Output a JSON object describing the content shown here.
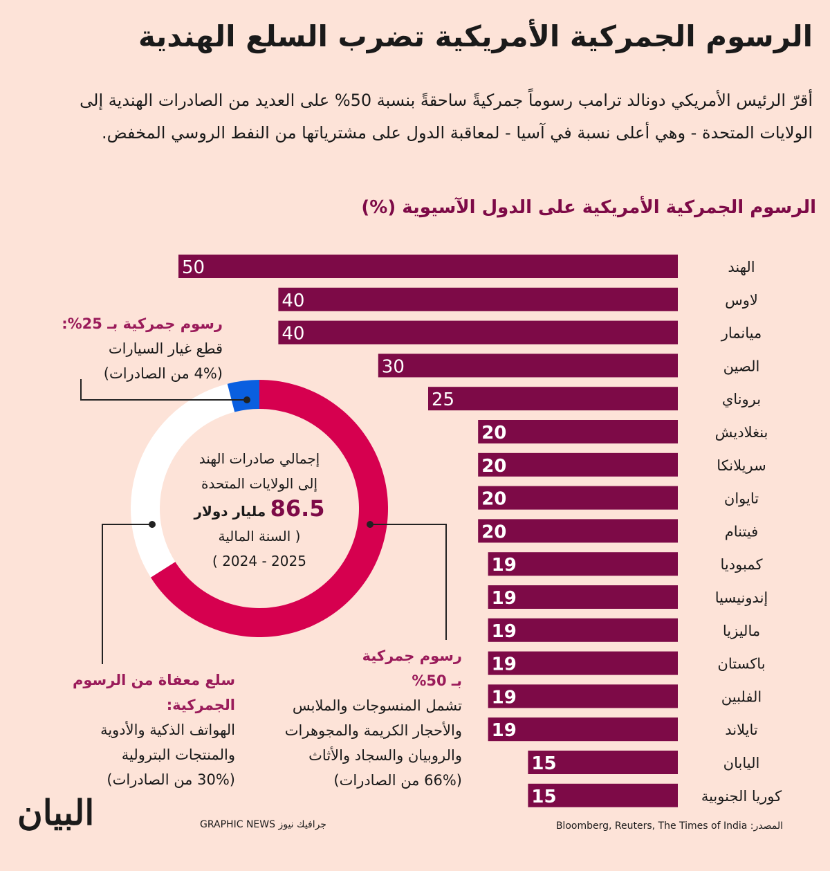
{
  "title": "الرسوم الجمركية الأمريكية تضرب السلع الهندية",
  "intro": "أقرّ الرئيس الأمريكي  دونالد ترامب رسوماً جمركيةً ساحقةً بنسبة 50% على العديد من الصادرات الهندية إلى الولايات المتحدة - وهي أعلى نسبة في آسيا - لمعاقبة الدول على مشترياتها من النفط الروسي المخفض.",
  "chart_data": [
    {
      "type": "bar",
      "orientation": "horizontal",
      "title": "الرسوم الجمركية الأمريكية  على الدول الآسيوية (%)",
      "categories": [
        "الهند",
        "لاوس",
        "ميانمار",
        "الصين",
        "بروناي",
        "بنغلاديش",
        "سريلانكا",
        "تايوان",
        "فيتنام",
        "كمبوديا",
        "إندونيسيا",
        "ماليزيا",
        "باكستان",
        "الفلبين",
        "تايلاند",
        "اليابان",
        "كوريا الجنوبية"
      ],
      "values": [
        50,
        40,
        40,
        30,
        25,
        20,
        20,
        20,
        20,
        19,
        19,
        19,
        19,
        19,
        19,
        15,
        15
      ],
      "xlim": [
        0,
        50
      ],
      "color": "#7d0a47"
    },
    {
      "type": "pie",
      "title": "إجمالي صادرات الهند إلى الولايات المتحدة",
      "total_value": "86.5",
      "total_unit": "مليار دولار",
      "period_line1": "( السنة المالية",
      "period_line2": "2025 - 2024  )",
      "slices": [
        {
          "label": "رسوم جمركية بـ 50%",
          "value": 66,
          "color": "#d6004f"
        },
        {
          "label": "سلع معفاة من الرسوم الجمركية",
          "value": 30,
          "color": "#ffffff"
        },
        {
          "label": "رسوم جمركية بـ 25%",
          "value": 4,
          "color": "#0a5fe0"
        }
      ]
    }
  ],
  "notes": {
    "n25": {
      "head": "رسوم جمركية بـ 25%:",
      "body": "قطع غيار السيارات",
      "share": "(4% من الصادرات)"
    },
    "n50": {
      "head1": "رسوم جمركية",
      "head2": "بـ 50%",
      "l1": "تشمل المنسوجات والملابس",
      "l2": "والأحجار الكريمة والمجوهرات",
      "l3": "والروبيان والسجاد والأثاث",
      "share": "(66% من الصادرات)"
    },
    "nfree": {
      "head1": "سلع معفاة من الرسوم",
      "head2": "الجمركية:",
      "l1": "الهواتف الذكية والأدوية",
      "l2": "والمنتجات البترولية",
      "share": "(30% من الصادرات)"
    }
  },
  "center": {
    "line1": "إجمالي صادرات الهند",
    "line2": "إلى الولايات المتحدة"
  },
  "footer": {
    "source": "المصدر: Bloomberg, Reuters, The Times of India",
    "credit": "جرافيك نيوز GRAPHIC NEWS",
    "logo": "البيان"
  }
}
